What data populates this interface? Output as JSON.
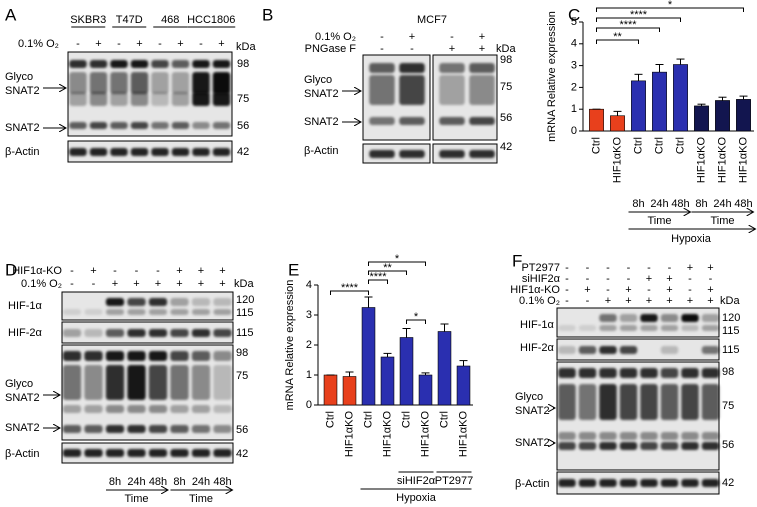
{
  "panels": {
    "a": {
      "label": "A",
      "cell_lines": [
        "SKBR3",
        "T47D",
        "468",
        "HCC1806"
      ],
      "condition": "0.1% O₂",
      "treatment": [
        "-",
        "+",
        "-",
        "+",
        "-",
        "+",
        "-",
        "+"
      ],
      "unit": "kDa",
      "markers": [
        98,
        75,
        56,
        42
      ],
      "glyco": [
        "Glyco",
        "SNAT2"
      ],
      "snat2": "SNAT2",
      "actin": "β-Actin"
    },
    "b": {
      "label": "B",
      "cell_line": "MCF7",
      "rows": [
        {
          "name": "0.1% O₂",
          "signs": [
            "-",
            "+",
            "-",
            "+"
          ]
        },
        {
          "name": "PNGase F",
          "signs": [
            "-",
            "-",
            "+",
            "+"
          ]
        }
      ],
      "unit": "kDa",
      "markers": [
        98,
        75,
        56,
        42
      ],
      "glyco": [
        "Glyco",
        "SNAT2"
      ],
      "snat2": "SNAT2",
      "actin": "β-Actin"
    },
    "c": {
      "label": "C",
      "time_points": [
        "8h",
        "24h",
        "48h",
        "8h",
        "24h",
        "48h"
      ],
      "time": [
        "Time",
        "Time"
      ],
      "condition": "Hypoxia"
    },
    "d": {
      "label": "D",
      "rows": [
        {
          "name": "HIF1α-KO",
          "signs": [
            "-",
            "+",
            "-",
            "-",
            "-",
            "+",
            "+",
            "+"
          ]
        },
        {
          "name": "0.1% O₂",
          "signs": [
            "-",
            "-",
            "+",
            "+",
            "+",
            "+",
            "+",
            "+"
          ]
        }
      ],
      "unit": "kDa",
      "markers": [
        120,
        115,
        115,
        98,
        75,
        56,
        42
      ],
      "blots": [
        "HIF-1α",
        "HIF-2α"
      ],
      "glyco": [
        "Glyco",
        "SNAT2"
      ],
      "snat2": "SNAT2",
      "actin": "β-Actin",
      "time_points": [
        "8h",
        "24h",
        "48h",
        "8h",
        "24h",
        "48h"
      ],
      "time": [
        "Time",
        "Time"
      ]
    },
    "e": {
      "label": "E",
      "groups": [
        "siHIF2α",
        "PT2977"
      ],
      "condition": "Hypoxia"
    },
    "f": {
      "label": "F",
      "rows": [
        {
          "name": "PT2977",
          "signs": [
            "-",
            "-",
            "-",
            "-",
            "-",
            "-",
            "+",
            "+"
          ]
        },
        {
          "name": "siHIF2α",
          "signs": [
            "-",
            "-",
            "-",
            "-",
            "+",
            "+",
            "-",
            "-"
          ]
        },
        {
          "name": "HIF1α-KO",
          "signs": [
            "-",
            "+",
            "-",
            "+",
            "-",
            "+",
            "-",
            "+"
          ]
        },
        {
          "name": "0.1% O₂",
          "signs": [
            "-",
            "-",
            "+",
            "+",
            "+",
            "+",
            "+",
            "+"
          ]
        }
      ],
      "unit": "kDa",
      "markers": [
        120,
        115,
        115,
        98,
        75,
        56,
        42
      ],
      "blots": [
        "HIF-1α",
        "HIF-2α"
      ],
      "glyco": [
        "Glyco",
        "SNAT2"
      ],
      "snat2": "SNAT2",
      "actin": "β-Actin"
    }
  },
  "chart_data": [
    {
      "type": "bar",
      "y_label": "mRNA Relative expression",
      "categories": [
        "Ctrl",
        "HIF1αKO",
        "Ctrl",
        "Ctrl",
        "Ctrl",
        "HIF1αKO",
        "HIF1αKO",
        "HIF1αKO"
      ],
      "values": [
        1.0,
        0.7,
        2.3,
        2.7,
        3.05,
        1.15,
        1.4,
        1.45
      ],
      "errors": [
        0,
        0.2,
        0.3,
        0.35,
        0.25,
        0.08,
        0.15,
        0.15
      ],
      "colors": [
        "#e8401c",
        "#e8401c",
        "#2a2fb0",
        "#2a2fb0",
        "#2a2fb0",
        "#12154f",
        "#12154f",
        "#12154f"
      ],
      "ylim": [
        0,
        5
      ],
      "yticks": [
        0,
        1,
        2,
        3,
        4,
        5
      ],
      "significance": [
        "*",
        "****",
        "****",
        "**"
      ]
    },
    {
      "type": "bar",
      "y_label": "mRNA Relative expression",
      "categories": [
        "Ctrl",
        "HIF1αKO",
        "Ctrl",
        "HIF1αKO",
        "Ctrl",
        "HIF1αKO",
        "Ctrl",
        "HIF1αKO"
      ],
      "values": [
        1.0,
        0.95,
        3.25,
        1.6,
        2.25,
        1.0,
        2.45,
        1.3
      ],
      "errors": [
        0,
        0.15,
        0.35,
        0.12,
        0.3,
        0.07,
        0.25,
        0.18
      ],
      "colors": [
        "#e8401c",
        "#e8401c",
        "#2a2fb0",
        "#2a2fb0",
        "#2a2fb0",
        "#2a2fb0",
        "#2a2fb0",
        "#2a2fb0"
      ],
      "ylim": [
        0,
        4
      ],
      "yticks": [
        0,
        1,
        2,
        3,
        4
      ],
      "significance": [
        "*",
        "**",
        "****",
        "****",
        "*"
      ]
    }
  ]
}
